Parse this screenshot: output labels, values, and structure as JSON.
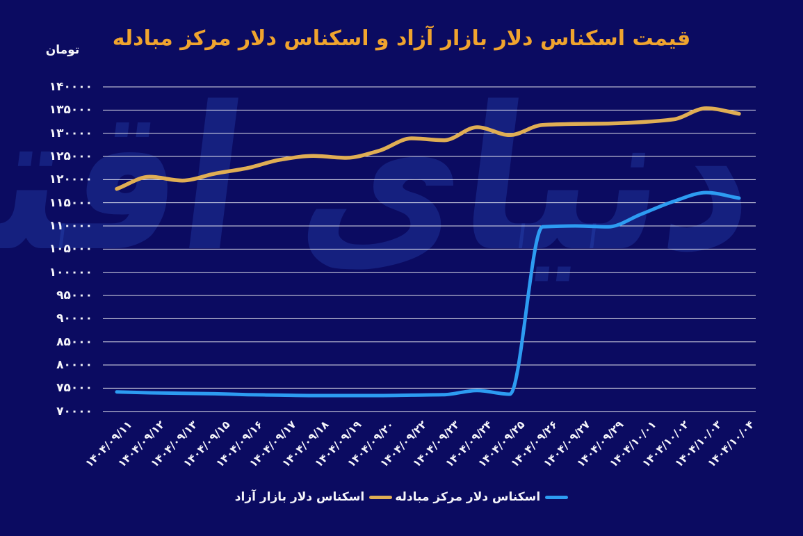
{
  "page": {
    "background": "#0b0b61",
    "watermark_color": "rgba(47,82,199,0.30)"
  },
  "header": {
    "title": "قیمت اسکناس دلار بازار آزاد و اسکناس دلار مرکز مبادله",
    "title_color": "#f0a42e",
    "unit_label": "تومان"
  },
  "watermark": {
    "text": "دنیای اقتصاد"
  },
  "chart_data": {
    "type": "line",
    "title": "قیمت اسکناس دلار بازار آزاد و اسکناس دلار مرکز مبادله",
    "ylabel": "تومان",
    "xlabel": "",
    "grid": true,
    "legend_position": "bottom",
    "ylim": [
      70000,
      140000
    ],
    "ytick_step": 5000,
    "x_labels": [
      "۱۴۰۴/۰۹/۱۱",
      "۱۴۰۴/۰۹/۱۲",
      "۱۴۰۴/۰۹/۱۳",
      "۱۴۰۴/۰۹/۱۵",
      "۱۴۰۴/۰۹/۱۶",
      "۱۴۰۴/۰۹/۱۷",
      "۱۴۰۴/۰۹/۱۸",
      "۱۴۰۴/۰۹/۱۹",
      "۱۴۰۴/۰۹/۲۰",
      "۱۴۰۴/۰۹/۲۲",
      "۱۴۰۴/۰۹/۲۳",
      "۱۴۰۴/۰۹/۲۴",
      "۱۴۰۴/۰۹/۲۵",
      "۱۴۰۴/۰۹/۲۶",
      "۱۴۰۴/۰۹/۲۷",
      "۱۴۰۴/۰۹/۲۹",
      "۱۴۰۴/۱۰/۰۱",
      "۱۴۰۴/۱۰/۰۲",
      "۱۴۰۴/۱۰/۰۳",
      "۱۴۰۴/۱۰/۰۴"
    ],
    "series": [
      {
        "id": "free-market",
        "name": "اسکناس دلار بازار آزاد",
        "color": "#e0ae54",
        "values": [
          118000,
          120600,
          119800,
          121300,
          122500,
          124300,
          125100,
          124700,
          126200,
          128900,
          128500,
          131300,
          129600,
          131800,
          132000,
          132100,
          132400,
          133000,
          135400,
          134200
        ]
      },
      {
        "id": "exchange-center",
        "name": "اسکناس دلار مرکز مبادله",
        "color": "#2d9cf2",
        "values": [
          74200,
          74000,
          73900,
          73800,
          73600,
          73500,
          73400,
          73400,
          73400,
          73500,
          73600,
          74500,
          73700,
          109800,
          110000,
          109800,
          112500,
          115300,
          117200,
          116000
        ]
      }
    ],
    "yticks": [
      {
        "value": 140000,
        "label": "۱۴۰۰۰۰"
      },
      {
        "value": 135000,
        "label": "۱۳۵۰۰۰"
      },
      {
        "value": 130000,
        "label": "۱۳۰۰۰۰"
      },
      {
        "value": 125000,
        "label": "۱۲۵۰۰۰"
      },
      {
        "value": 120000,
        "label": "۱۲۰۰۰۰"
      },
      {
        "value": 115000,
        "label": "۱۱۵۰۰۰"
      },
      {
        "value": 110000,
        "label": "۱۱۰۰۰۰"
      },
      {
        "value": 105000,
        "label": "۱۰۵۰۰۰"
      },
      {
        "value": 100000,
        "label": "۱۰۰۰۰۰"
      },
      {
        "value": 95000,
        "label": "۹۵۰۰۰"
      },
      {
        "value": 90000,
        "label": "۹۰۰۰۰"
      },
      {
        "value": 85000,
        "label": "۸۵۰۰۰"
      },
      {
        "value": 80000,
        "label": "۸۰۰۰۰"
      },
      {
        "value": 75000,
        "label": "۷۵۰۰۰"
      },
      {
        "value": 70000,
        "label": "۷۰۰۰۰"
      }
    ],
    "colors": {
      "gridline": "#ffffff",
      "axis_text": "#f5f5fa"
    }
  }
}
